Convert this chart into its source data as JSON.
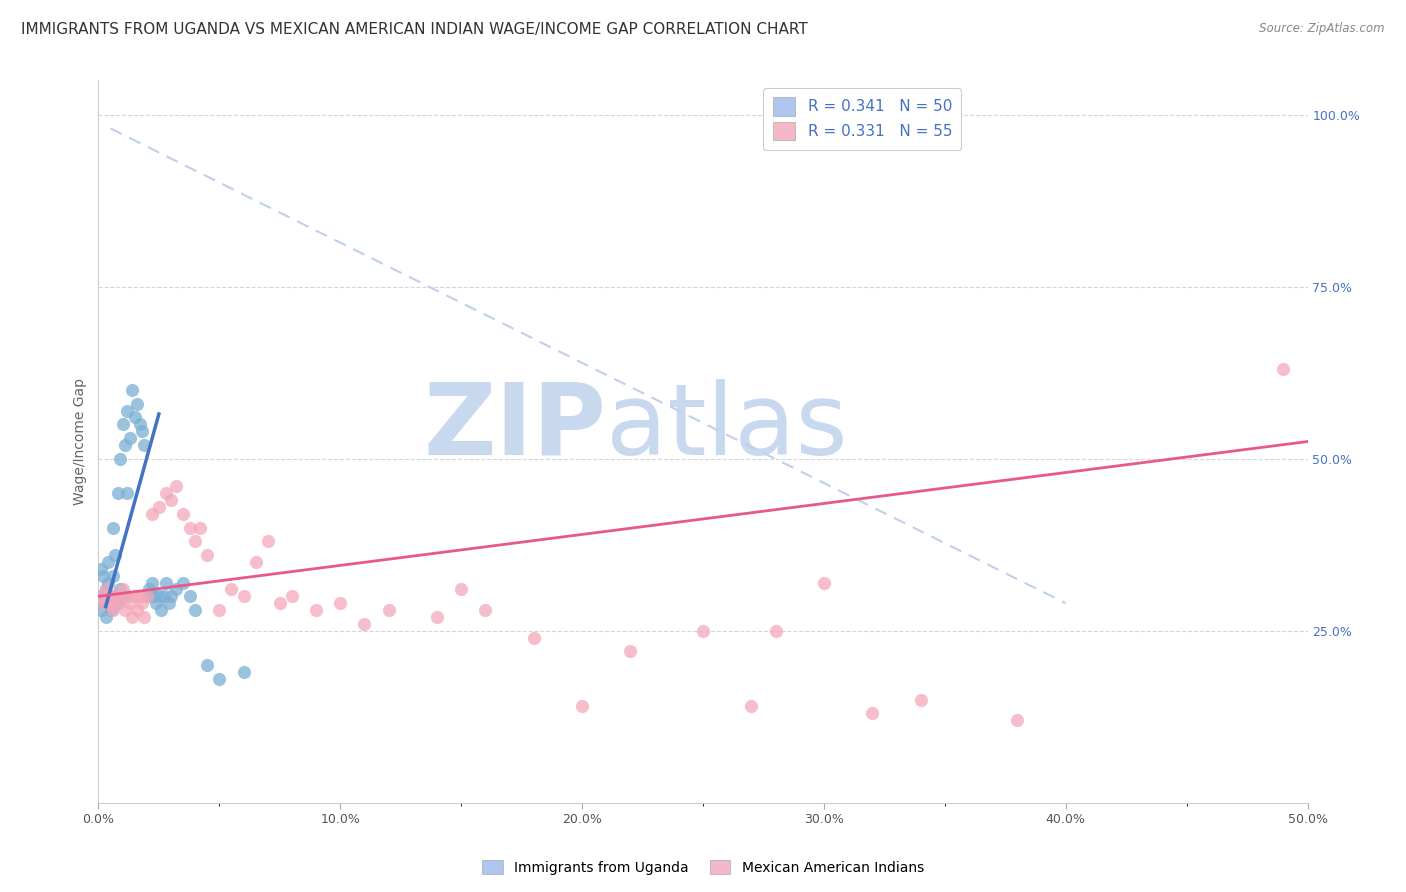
{
  "title": "IMMIGRANTS FROM UGANDA VS MEXICAN AMERICAN INDIAN WAGE/INCOME GAP CORRELATION CHART",
  "source": "Source: ZipAtlas.com",
  "ylabel": "Wage/Income Gap",
  "xlim": [
    0.0,
    0.5
  ],
  "ylim": [
    0.0,
    1.05
  ],
  "xtick_labels": [
    "0.0%",
    "",
    "",
    "",
    "",
    "",
    "",
    "",
    "",
    "",
    "10.0%",
    "",
    "",
    "",
    "",
    "",
    "",
    "",
    "",
    "",
    "20.0%",
    "",
    "",
    "",
    "",
    "",
    "",
    "",
    "",
    "",
    "30.0%",
    "",
    "",
    "",
    "",
    "",
    "",
    "",
    "",
    "",
    "40.0%",
    "",
    "",
    "",
    "",
    "",
    "",
    "",
    "",
    "",
    "50.0%"
  ],
  "xtick_vals": [
    0.0,
    0.01,
    0.02,
    0.03,
    0.04,
    0.05,
    0.06,
    0.07,
    0.08,
    0.09,
    0.1,
    0.11,
    0.12,
    0.13,
    0.14,
    0.15,
    0.16,
    0.17,
    0.18,
    0.19,
    0.2,
    0.21,
    0.22,
    0.23,
    0.24,
    0.25,
    0.26,
    0.27,
    0.28,
    0.29,
    0.3,
    0.31,
    0.32,
    0.33,
    0.34,
    0.35,
    0.36,
    0.37,
    0.38,
    0.39,
    0.4,
    0.41,
    0.42,
    0.43,
    0.44,
    0.45,
    0.46,
    0.47,
    0.48,
    0.49,
    0.5
  ],
  "xtick_major_labels": [
    "0.0%",
    "10.0%",
    "20.0%",
    "30.0%",
    "40.0%",
    "50.0%"
  ],
  "xtick_major_vals": [
    0.0,
    0.1,
    0.2,
    0.3,
    0.4,
    0.5
  ],
  "ytick_labels": [
    "25.0%",
    "50.0%",
    "75.0%",
    "100.0%"
  ],
  "ytick_vals": [
    0.25,
    0.5,
    0.75,
    1.0
  ],
  "watermark_zip": "ZIP",
  "watermark_atlas": "atlas",
  "legend_label1": "R = 0.341   N = 50",
  "legend_label2": "R = 0.331   N = 55",
  "legend_color1": "#aec6f0",
  "legend_color2": "#f4b8c8",
  "blue_scatter_x": [
    0.001,
    0.001,
    0.001,
    0.002,
    0.002,
    0.003,
    0.003,
    0.003,
    0.004,
    0.004,
    0.005,
    0.005,
    0.006,
    0.006,
    0.007,
    0.007,
    0.008,
    0.008,
    0.009,
    0.009,
    0.01,
    0.01,
    0.011,
    0.012,
    0.012,
    0.013,
    0.014,
    0.015,
    0.016,
    0.017,
    0.018,
    0.019,
    0.02,
    0.021,
    0.022,
    0.023,
    0.024,
    0.025,
    0.026,
    0.027,
    0.028,
    0.029,
    0.03,
    0.032,
    0.035,
    0.038,
    0.04,
    0.045,
    0.05,
    0.06
  ],
  "blue_scatter_y": [
    0.3,
    0.34,
    0.28,
    0.33,
    0.29,
    0.31,
    0.3,
    0.27,
    0.35,
    0.32,
    0.3,
    0.28,
    0.33,
    0.4,
    0.3,
    0.36,
    0.29,
    0.45,
    0.31,
    0.5,
    0.3,
    0.55,
    0.52,
    0.57,
    0.45,
    0.53,
    0.6,
    0.56,
    0.58,
    0.55,
    0.54,
    0.52,
    0.3,
    0.31,
    0.32,
    0.3,
    0.29,
    0.3,
    0.28,
    0.3,
    0.32,
    0.29,
    0.3,
    0.31,
    0.32,
    0.3,
    0.28,
    0.2,
    0.18,
    0.19
  ],
  "pink_scatter_x": [
    0.001,
    0.002,
    0.003,
    0.004,
    0.005,
    0.006,
    0.007,
    0.008,
    0.009,
    0.01,
    0.011,
    0.012,
    0.013,
    0.014,
    0.015,
    0.016,
    0.017,
    0.018,
    0.019,
    0.02,
    0.022,
    0.025,
    0.028,
    0.03,
    0.032,
    0.035,
    0.038,
    0.04,
    0.042,
    0.045,
    0.05,
    0.055,
    0.06,
    0.065,
    0.07,
    0.075,
    0.08,
    0.09,
    0.1,
    0.11,
    0.12,
    0.14,
    0.15,
    0.16,
    0.18,
    0.2,
    0.22,
    0.25,
    0.27,
    0.28,
    0.3,
    0.32,
    0.34,
    0.38,
    0.49
  ],
  "pink_scatter_y": [
    0.3,
    0.29,
    0.31,
    0.3,
    0.29,
    0.28,
    0.3,
    0.29,
    0.3,
    0.31,
    0.28,
    0.3,
    0.29,
    0.27,
    0.3,
    0.28,
    0.3,
    0.29,
    0.27,
    0.3,
    0.42,
    0.43,
    0.45,
    0.44,
    0.46,
    0.42,
    0.4,
    0.38,
    0.4,
    0.36,
    0.28,
    0.31,
    0.3,
    0.35,
    0.38,
    0.29,
    0.3,
    0.28,
    0.29,
    0.26,
    0.28,
    0.27,
    0.31,
    0.28,
    0.24,
    0.14,
    0.22,
    0.25,
    0.14,
    0.25,
    0.32,
    0.13,
    0.15,
    0.12,
    0.63
  ],
  "blue_line_x": [
    0.003,
    0.025
  ],
  "blue_line_y": [
    0.285,
    0.565
  ],
  "pink_line_x": [
    0.0,
    0.5
  ],
  "pink_line_y": [
    0.3,
    0.525
  ],
  "dashed_line_x": [
    0.005,
    0.4
  ],
  "dashed_line_y": [
    0.98,
    0.29
  ],
  "blue_color": "#7bafd4",
  "pink_color": "#f4a7b9",
  "blue_line_color": "#4472c4",
  "pink_line_color": "#e8588a",
  "dashed_line_color": "#c0d0e8",
  "title_fontsize": 11,
  "axis_label_fontsize": 10,
  "tick_fontsize": 9,
  "watermark_color_zip": "#c8d8ee",
  "watermark_color_atlas": "#c8d8ee",
  "watermark_fontsize": 72
}
